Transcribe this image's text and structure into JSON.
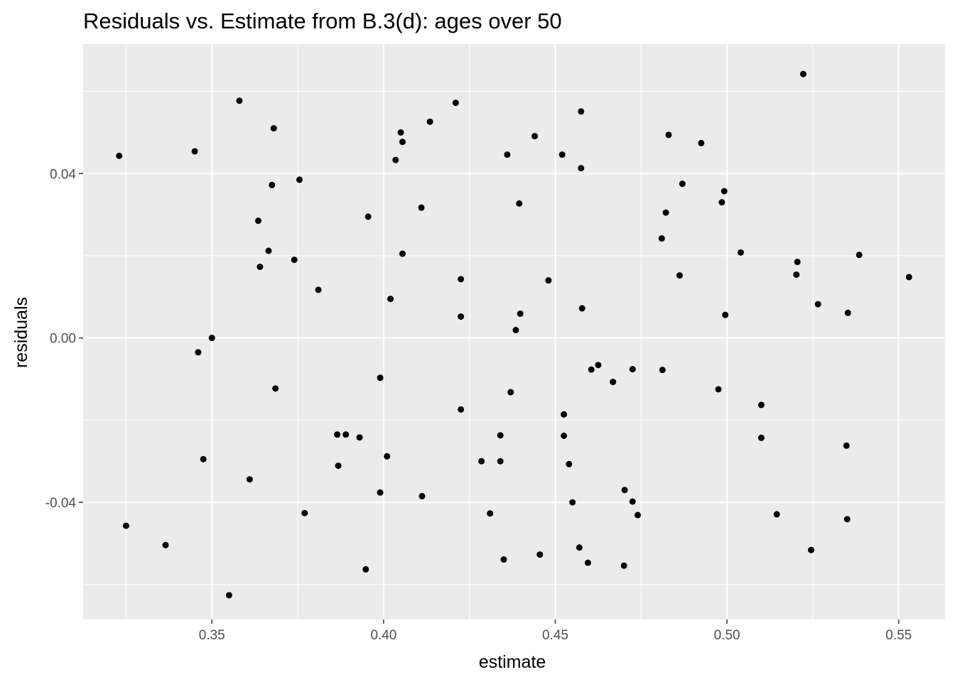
{
  "chart_data": {
    "type": "scatter",
    "title": "Residuals vs. Estimate from B.3(d): ages over 50",
    "xlabel": "estimate",
    "ylabel": "residuals",
    "xlim": [
      0.3125,
      0.5635
    ],
    "ylim": [
      -0.0685,
      0.0715
    ],
    "x_ticks": [
      {
        "value": 0.35,
        "label": "0.35"
      },
      {
        "value": 0.4,
        "label": "0.40"
      },
      {
        "value": 0.45,
        "label": "0.45"
      },
      {
        "value": 0.5,
        "label": "0.50"
      },
      {
        "value": 0.55,
        "label": "0.55"
      }
    ],
    "y_ticks": [
      {
        "value": -0.04,
        "label": "-0.04"
      },
      {
        "value": 0.0,
        "label": "0.00"
      },
      {
        "value": 0.04,
        "label": "0.04"
      }
    ],
    "grid": true,
    "colors": {
      "panel": "#ebebeb",
      "grid": "#ffffff",
      "point": "#000000"
    },
    "points": [
      {
        "x": 0.323,
        "y": 0.0443
      },
      {
        "x": 0.325,
        "y": -0.0457
      },
      {
        "x": 0.3365,
        "y": -0.0504
      },
      {
        "x": 0.345,
        "y": 0.0454
      },
      {
        "x": 0.346,
        "y": -0.0035
      },
      {
        "x": 0.3475,
        "y": -0.0295
      },
      {
        "x": 0.35,
        "y": 0.0
      },
      {
        "x": 0.355,
        "y": -0.0626
      },
      {
        "x": 0.358,
        "y": 0.0577
      },
      {
        "x": 0.361,
        "y": -0.0344
      },
      {
        "x": 0.3635,
        "y": 0.0285
      },
      {
        "x": 0.364,
        "y": 0.0173
      },
      {
        "x": 0.3665,
        "y": 0.0212
      },
      {
        "x": 0.3675,
        "y": 0.0372
      },
      {
        "x": 0.368,
        "y": 0.051
      },
      {
        "x": 0.3685,
        "y": -0.0123
      },
      {
        "x": 0.374,
        "y": 0.019
      },
      {
        "x": 0.3755,
        "y": 0.0385
      },
      {
        "x": 0.377,
        "y": -0.0426
      },
      {
        "x": 0.381,
        "y": 0.0117
      },
      {
        "x": 0.3865,
        "y": -0.0235
      },
      {
        "x": 0.3868,
        "y": -0.0311
      },
      {
        "x": 0.389,
        "y": -0.0235
      },
      {
        "x": 0.393,
        "y": -0.0242
      },
      {
        "x": 0.3948,
        "y": -0.0563
      },
      {
        "x": 0.3955,
        "y": 0.0295
      },
      {
        "x": 0.399,
        "y": -0.0097
      },
      {
        "x": 0.399,
        "y": -0.0376
      },
      {
        "x": 0.401,
        "y": -0.0288
      },
      {
        "x": 0.402,
        "y": 0.0095
      },
      {
        "x": 0.4035,
        "y": 0.0433
      },
      {
        "x": 0.405,
        "y": 0.05
      },
      {
        "x": 0.4055,
        "y": 0.0477
      },
      {
        "x": 0.4055,
        "y": 0.0205
      },
      {
        "x": 0.411,
        "y": 0.0317
      },
      {
        "x": 0.4112,
        "y": -0.0385
      },
      {
        "x": 0.4135,
        "y": 0.0526
      },
      {
        "x": 0.421,
        "y": 0.0572
      },
      {
        "x": 0.4225,
        "y": 0.0143
      },
      {
        "x": 0.4225,
        "y": 0.0052
      },
      {
        "x": 0.4225,
        "y": -0.0174
      },
      {
        "x": 0.4285,
        "y": -0.03
      },
      {
        "x": 0.431,
        "y": -0.0427
      },
      {
        "x": 0.434,
        "y": -0.0237
      },
      {
        "x": 0.434,
        "y": -0.03
      },
      {
        "x": 0.435,
        "y": -0.0539
      },
      {
        "x": 0.436,
        "y": 0.0446
      },
      {
        "x": 0.437,
        "y": -0.0132
      },
      {
        "x": 0.4385,
        "y": 0.0019
      },
      {
        "x": 0.4395,
        "y": 0.0327
      },
      {
        "x": 0.4398,
        "y": 0.0059
      },
      {
        "x": 0.444,
        "y": 0.0491
      },
      {
        "x": 0.4455,
        "y": -0.0527
      },
      {
        "x": 0.448,
        "y": 0.014
      },
      {
        "x": 0.452,
        "y": 0.0446
      },
      {
        "x": 0.4525,
        "y": -0.0186
      },
      {
        "x": 0.4525,
        "y": -0.0238
      },
      {
        "x": 0.454,
        "y": -0.0307
      },
      {
        "x": 0.455,
        "y": -0.04
      },
      {
        "x": 0.457,
        "y": -0.051
      },
      {
        "x": 0.4575,
        "y": 0.0413
      },
      {
        "x": 0.4575,
        "y": 0.0551
      },
      {
        "x": 0.4578,
        "y": 0.0072
      },
      {
        "x": 0.4595,
        "y": -0.0547
      },
      {
        "x": 0.4605,
        "y": -0.0077
      },
      {
        "x": 0.4625,
        "y": -0.0066
      },
      {
        "x": 0.4668,
        "y": -0.0107
      },
      {
        "x": 0.47,
        "y": -0.0554
      },
      {
        "x": 0.4702,
        "y": -0.037
      },
      {
        "x": 0.4725,
        "y": -0.0076
      },
      {
        "x": 0.4725,
        "y": -0.0398
      },
      {
        "x": 0.474,
        "y": -0.0431
      },
      {
        "x": 0.481,
        "y": 0.0242
      },
      {
        "x": 0.4812,
        "y": -0.0078
      },
      {
        "x": 0.4822,
        "y": 0.0305
      },
      {
        "x": 0.483,
        "y": 0.0494
      },
      {
        "x": 0.4862,
        "y": 0.0152
      },
      {
        "x": 0.487,
        "y": 0.0375
      },
      {
        "x": 0.4925,
        "y": 0.0474
      },
      {
        "x": 0.4975,
        "y": -0.0125
      },
      {
        "x": 0.4985,
        "y": 0.033
      },
      {
        "x": 0.4992,
        "y": 0.0357
      },
      {
        "x": 0.4995,
        "y": 0.0056
      },
      {
        "x": 0.504,
        "y": 0.0208
      },
      {
        "x": 0.51,
        "y": -0.0163
      },
      {
        "x": 0.51,
        "y": -0.0243
      },
      {
        "x": 0.5145,
        "y": -0.0429
      },
      {
        "x": 0.5202,
        "y": 0.0154
      },
      {
        "x": 0.5205,
        "y": 0.0185
      },
      {
        "x": 0.5222,
        "y": 0.0642
      },
      {
        "x": 0.5245,
        "y": -0.0516
      },
      {
        "x": 0.5265,
        "y": 0.0082
      },
      {
        "x": 0.5348,
        "y": -0.0262
      },
      {
        "x": 0.535,
        "y": -0.0441
      },
      {
        "x": 0.5352,
        "y": 0.0061
      },
      {
        "x": 0.5385,
        "y": 0.0202
      },
      {
        "x": 0.553,
        "y": 0.0148
      }
    ]
  }
}
